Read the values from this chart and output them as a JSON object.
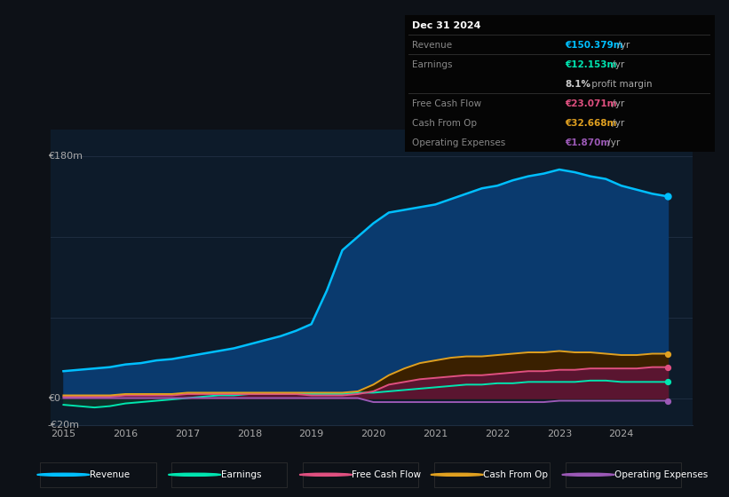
{
  "background_color": "#0d1117",
  "plot_bg_color": "#0d1b2a",
  "grid_color": "#1e2d40",
  "years": [
    2015.0,
    2015.25,
    2015.5,
    2015.75,
    2016.0,
    2016.25,
    2016.5,
    2016.75,
    2017.0,
    2017.25,
    2017.5,
    2017.75,
    2018.0,
    2018.25,
    2018.5,
    2018.75,
    2019.0,
    2019.25,
    2019.5,
    2019.75,
    2020.0,
    2020.25,
    2020.5,
    2020.75,
    2021.0,
    2021.25,
    2021.5,
    2021.75,
    2022.0,
    2022.25,
    2022.5,
    2022.75,
    2023.0,
    2023.25,
    2023.5,
    2023.75,
    2024.0,
    2024.25,
    2024.5,
    2024.75
  ],
  "revenue": [
    20,
    21,
    22,
    23,
    25,
    26,
    28,
    29,
    31,
    33,
    35,
    37,
    40,
    43,
    46,
    50,
    55,
    80,
    110,
    120,
    130,
    138,
    140,
    142,
    144,
    148,
    152,
    156,
    158,
    162,
    165,
    167,
    170,
    168,
    165,
    163,
    158,
    155,
    152,
    150
  ],
  "earnings": [
    -5,
    -6,
    -7,
    -6,
    -4,
    -3,
    -2,
    -1,
    0,
    1,
    2,
    2,
    3,
    3,
    3,
    3,
    3,
    3,
    3,
    4,
    4,
    5,
    6,
    7,
    8,
    9,
    10,
    10,
    11,
    11,
    12,
    12,
    12,
    12,
    13,
    13,
    12,
    12,
    12,
    12
  ],
  "free_cash_flow": [
    1,
    1,
    1,
    1,
    2,
    2,
    2,
    2,
    3,
    3,
    3,
    3,
    3,
    3,
    3,
    3,
    2,
    2,
    2,
    3,
    5,
    10,
    12,
    14,
    15,
    16,
    17,
    17,
    18,
    19,
    20,
    20,
    21,
    21,
    22,
    22,
    22,
    22,
    23,
    23
  ],
  "cash_from_op": [
    2,
    2,
    2,
    2,
    3,
    3,
    3,
    3,
    4,
    4,
    4,
    4,
    4,
    4,
    4,
    4,
    4,
    4,
    4,
    5,
    10,
    17,
    22,
    26,
    28,
    30,
    31,
    31,
    32,
    33,
    34,
    34,
    35,
    34,
    34,
    33,
    32,
    32,
    33,
    33
  ],
  "operating_expenses": [
    0,
    0,
    0,
    0,
    0,
    0,
    0,
    0,
    0,
    0,
    0,
    0,
    0,
    0,
    0,
    0,
    0,
    0,
    0,
    0,
    -3,
    -3,
    -3,
    -3,
    -3,
    -3,
    -3,
    -3,
    -3,
    -3,
    -3,
    -3,
    -2,
    -2,
    -2,
    -2,
    -2,
    -2,
    -2,
    -2
  ],
  "revenue_color": "#00bfff",
  "earnings_color": "#00e5b0",
  "free_cash_flow_color": "#e05080",
  "cash_from_op_color": "#e0a020",
  "operating_expenses_color": "#9b59b6",
  "revenue_fill": "#0a3a6e",
  "earnings_fill": "#0d3028",
  "free_cash_flow_fill": "#5a1530",
  "cash_from_op_fill": "#3a2000",
  "ylim_min": -20,
  "ylim_max": 200,
  "grid_lines": [
    0,
    60,
    120,
    180
  ],
  "xticks": [
    2015,
    2016,
    2017,
    2018,
    2019,
    2020,
    2021,
    2022,
    2023,
    2024
  ],
  "legend_items": [
    {
      "label": "Revenue",
      "color": "#00bfff"
    },
    {
      "label": "Earnings",
      "color": "#00e5b0"
    },
    {
      "label": "Free Cash Flow",
      "color": "#e05080"
    },
    {
      "label": "Cash From Op",
      "color": "#e0a020"
    },
    {
      "label": "Operating Expenses",
      "color": "#9b59b6"
    }
  ],
  "info_box": {
    "date": "Dec 31 2024",
    "rows": [
      {
        "label": "Revenue",
        "value": "€150.379m",
        "value_color": "#00bfff",
        "suffix": " /yr",
        "indent": false
      },
      {
        "label": "Earnings",
        "value": "€12.153m",
        "value_color": "#00e5b0",
        "suffix": " /yr",
        "indent": false
      },
      {
        "label": "",
        "value": "8.1%",
        "value_color": "#cccccc",
        "suffix": " profit margin",
        "indent": true
      },
      {
        "label": "Free Cash Flow",
        "value": "€23.071m",
        "value_color": "#e05080",
        "suffix": " /yr",
        "indent": false
      },
      {
        "label": "Cash From Op",
        "value": "€32.668m",
        "value_color": "#e0a020",
        "suffix": " /yr",
        "indent": false
      },
      {
        "label": "Operating Expenses",
        "value": "€1.870m",
        "value_color": "#9b59b6",
        "suffix": " /yr",
        "indent": false
      }
    ]
  }
}
